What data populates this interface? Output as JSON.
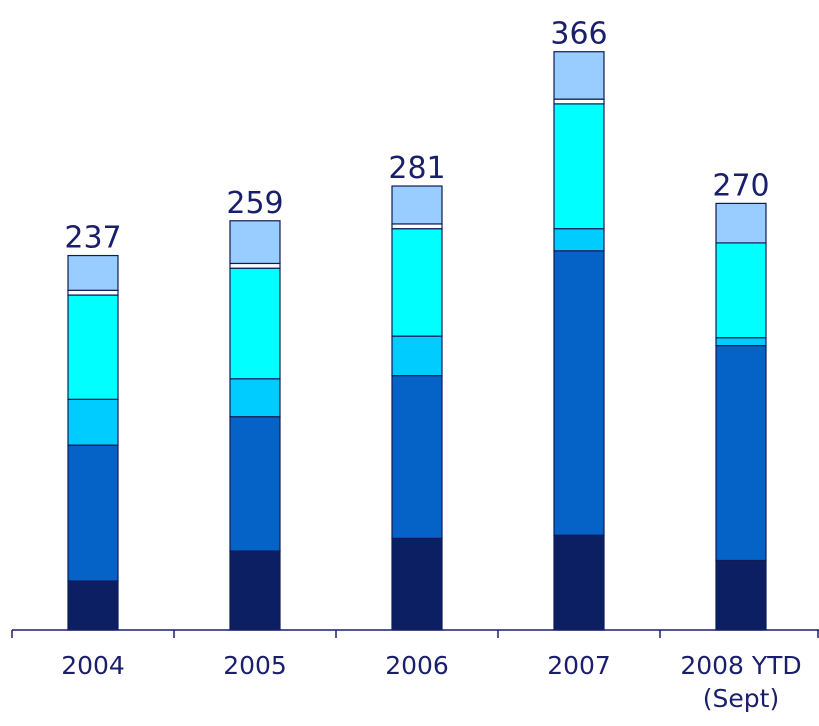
{
  "chart_data": {
    "type": "bar",
    "stacked": true,
    "categories": [
      "2004",
      "2005",
      "2006",
      "2007",
      "2008 YTD (Sept)"
    ],
    "category_lines": [
      [
        "2004"
      ],
      [
        "2005"
      ],
      [
        "2006"
      ],
      [
        "2007"
      ],
      [
        "2008 YTD",
        "(Sept)"
      ]
    ],
    "totals": [
      237,
      259,
      281,
      366,
      270
    ],
    "series": [
      {
        "color": "#0d1f63",
        "values": [
          31,
          50,
          58,
          60,
          44
        ]
      },
      {
        "color": "#0563c8",
        "values": [
          86,
          85,
          103,
          180,
          136
        ]
      },
      {
        "color": "#00ccff",
        "values": [
          29,
          24,
          25,
          14,
          5
        ]
      },
      {
        "color": "#00ffff",
        "values": [
          66,
          70,
          68,
          79,
          60
        ]
      },
      {
        "color": "#ffffff",
        "values": [
          3,
          3,
          3,
          3,
          0
        ]
      },
      {
        "color": "#99ccff",
        "values": [
          22,
          27,
          24,
          30,
          25
        ]
      }
    ],
    "ylim": [
      0,
      400
    ],
    "grid": false,
    "legend": "none"
  }
}
